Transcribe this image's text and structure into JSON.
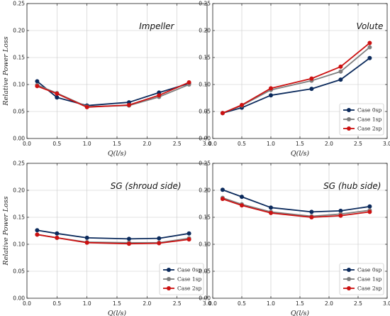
{
  "chart_data": [
    {
      "type": "line",
      "title": "Impeller",
      "xlabel": "Q(l/s)",
      "ylabel": "Relative Power Loss",
      "xlim": [
        0.0,
        3.0
      ],
      "ylim": [
        0.0,
        0.25
      ],
      "xticks": [
        "0.0",
        "0.5",
        "1.0",
        "1.5",
        "2.0",
        "2.5",
        "3.0"
      ],
      "yticks": [
        "0.00",
        "0.05",
        "0.10",
        "0.15",
        "0.20",
        "0.25"
      ],
      "grid": true,
      "legend": "",
      "x": [
        0.17,
        0.5,
        1.0,
        1.7,
        2.2,
        2.7
      ],
      "series": [
        {
          "name": "Case 0sp",
          "color": "#0b2a5c",
          "values": [
            0.106,
            0.076,
            0.061,
            0.067,
            0.085,
            0.102
          ]
        },
        {
          "name": "Case 1sp",
          "color": "#7f7f7f",
          "values": [
            0.099,
            0.084,
            0.059,
            0.061,
            0.077,
            0.1
          ]
        },
        {
          "name": "Case 2sp",
          "color": "#cc1111",
          "values": [
            0.097,
            0.083,
            0.058,
            0.062,
            0.08,
            0.104
          ]
        }
      ]
    },
    {
      "type": "line",
      "title": "Volute",
      "xlabel": "Q(l/s)",
      "ylabel": "",
      "xlim": [
        0.0,
        3.0
      ],
      "ylim": [
        0.0,
        0.25
      ],
      "xticks": [
        "0.0",
        "0.5",
        "1.0",
        "1.5",
        "2.0",
        "2.5",
        "3.0"
      ],
      "yticks": [
        "0.00",
        "0.05",
        "0.10",
        "0.15",
        "0.20",
        "0.25"
      ],
      "grid": true,
      "legend": "lower-right",
      "x": [
        0.17,
        0.5,
        1.0,
        1.7,
        2.2,
        2.7
      ],
      "series": [
        {
          "name": "Case 0sp",
          "color": "#0b2a5c",
          "values": [
            0.047,
            0.057,
            0.08,
            0.092,
            0.109,
            0.149
          ]
        },
        {
          "name": "Case 1sp",
          "color": "#7f7f7f",
          "values": [
            0.047,
            0.061,
            0.09,
            0.107,
            0.124,
            0.169
          ]
        },
        {
          "name": "Case 2sp",
          "color": "#cc1111",
          "values": [
            0.047,
            0.062,
            0.093,
            0.111,
            0.133,
            0.177
          ]
        }
      ]
    },
    {
      "type": "line",
      "title": "SG (shroud side)",
      "xlabel": "Q(l/s)",
      "ylabel": "Relative Power Loss",
      "xlim": [
        0.0,
        3.0
      ],
      "ylim": [
        0.0,
        0.25
      ],
      "xticks": [
        "0.0",
        "0.5",
        "1.0",
        "1.5",
        "2.0",
        "2.5",
        "3.0"
      ],
      "yticks": [
        "0.00",
        "0.05",
        "0.10",
        "0.15",
        "0.20",
        "0.25"
      ],
      "grid": true,
      "legend": "lower-right",
      "x": [
        0.17,
        0.5,
        1.0,
        1.7,
        2.2,
        2.7
      ],
      "series": [
        {
          "name": "Case 0sp",
          "color": "#0b2a5c",
          "values": [
            0.126,
            0.12,
            0.112,
            0.11,
            0.111,
            0.12
          ]
        },
        {
          "name": "Case 1sp",
          "color": "#7f7f7f",
          "values": [
            0.118,
            0.112,
            0.104,
            0.103,
            0.103,
            0.111
          ]
        },
        {
          "name": "Case 2sp",
          "color": "#cc1111",
          "values": [
            0.118,
            0.112,
            0.103,
            0.101,
            0.102,
            0.109
          ]
        }
      ]
    },
    {
      "type": "line",
      "title": "SG (hub side)",
      "xlabel": "Q(l/s)",
      "ylabel": "",
      "xlim": [
        0.0,
        3.0
      ],
      "ylim": [
        0.0,
        0.25
      ],
      "xticks": [
        "0.0",
        "0.5",
        "1.0",
        "1.5",
        "2.0",
        "2.5",
        "3.0"
      ],
      "yticks": [
        "0.00",
        "0.05",
        "0.10",
        "0.15",
        "0.20",
        "0.25"
      ],
      "grid": true,
      "legend": "lower-right",
      "x": [
        0.17,
        0.5,
        1.0,
        1.7,
        2.2,
        2.7
      ],
      "series": [
        {
          "name": "Case 0sp",
          "color": "#0b2a5c",
          "values": [
            0.201,
            0.188,
            0.168,
            0.16,
            0.162,
            0.17
          ]
        },
        {
          "name": "Case 1sp",
          "color": "#7f7f7f",
          "values": [
            0.186,
            0.174,
            0.16,
            0.152,
            0.156,
            0.163
          ]
        },
        {
          "name": "Case 2sp",
          "color": "#cc1111",
          "values": [
            0.184,
            0.172,
            0.158,
            0.15,
            0.153,
            0.16
          ]
        }
      ]
    }
  ]
}
